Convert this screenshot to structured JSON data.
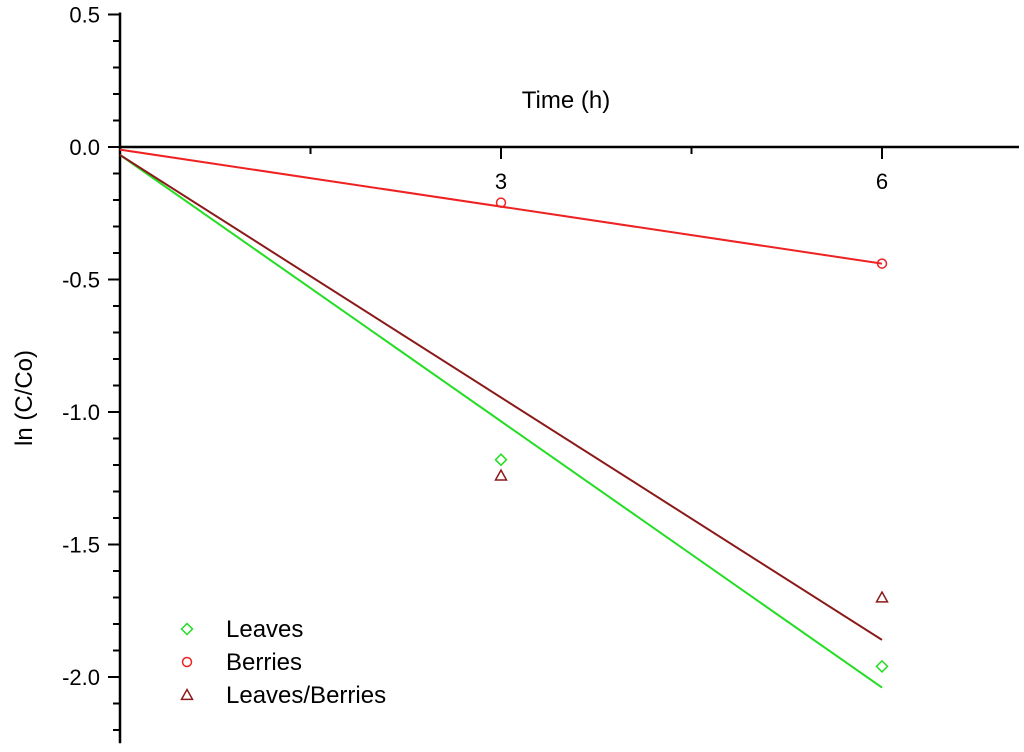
{
  "chart_data": {
    "type": "scatter",
    "title": "",
    "xlabel": "Time (h)",
    "ylabel": "ln (C/Co)",
    "xlim": [
      0,
      7
    ],
    "ylim": [
      -2.25,
      0.5
    ],
    "x_ticks": [
      "3",
      "6"
    ],
    "y_ticks": [
      "0.5",
      "0.0",
      "-0.5",
      "-1.0",
      "-1.5",
      "-2.0"
    ],
    "grid": false,
    "legend_position": "bottom-left",
    "series": [
      {
        "name": "Leaves",
        "marker": "diamond",
        "color": "#22dd22",
        "points": [
          {
            "x": 3,
            "y": -1.18
          },
          {
            "x": 6,
            "y": -1.96
          }
        ],
        "fit": [
          {
            "x": 0,
            "y": -0.03
          },
          {
            "x": 6,
            "y": -2.04
          }
        ]
      },
      {
        "name": "Berries",
        "marker": "circle",
        "color": "#ee2222",
        "points": [
          {
            "x": 3,
            "y": -0.21
          },
          {
            "x": 6,
            "y": -0.44
          }
        ],
        "fit": [
          {
            "x": 0,
            "y": -0.01
          },
          {
            "x": 6,
            "y": -0.44
          }
        ]
      },
      {
        "name": "Leaves/Berries",
        "marker": "triangle",
        "color": "#8b1a1a",
        "points": [
          {
            "x": 3,
            "y": -1.24
          },
          {
            "x": 6,
            "y": -1.7
          }
        ],
        "fit": [
          {
            "x": 0,
            "y": -0.03
          },
          {
            "x": 6,
            "y": -1.86
          }
        ]
      }
    ]
  }
}
